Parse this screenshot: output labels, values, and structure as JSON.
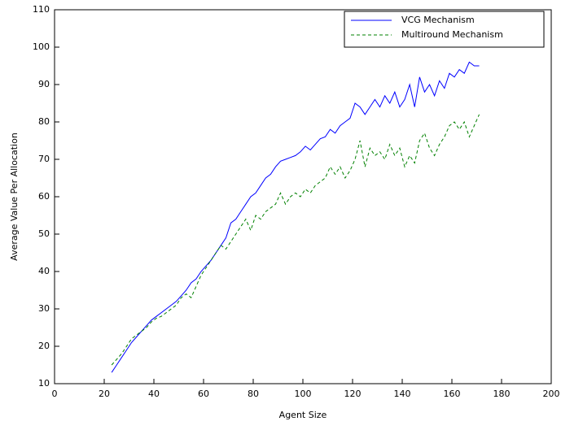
{
  "chart_data": {
    "type": "line",
    "xlabel": "Agent Size",
    "ylabel": "Average Value Per Allocation",
    "x": [
      23,
      25,
      27,
      29,
      31,
      33,
      35,
      37,
      39,
      41,
      43,
      45,
      47,
      49,
      51,
      53,
      55,
      57,
      59,
      61,
      63,
      65,
      67,
      69,
      71,
      73,
      75,
      77,
      79,
      81,
      83,
      85,
      87,
      89,
      91,
      93,
      95,
      97,
      99,
      101,
      103,
      105,
      107,
      109,
      111,
      113,
      115,
      117,
      119,
      121,
      123,
      125,
      127,
      129,
      131,
      133,
      135,
      137,
      139,
      141,
      143,
      145,
      147,
      149,
      151,
      153,
      155,
      157,
      159,
      161,
      163,
      165,
      167,
      169,
      171
    ],
    "series": [
      {
        "name": "VCG Mechanism",
        "color": "#0000ff",
        "dash": "solid",
        "values": [
          13,
          15,
          17,
          19,
          21,
          22.5,
          24,
          25.5,
          27,
          28,
          29,
          30,
          31,
          32,
          33.5,
          35,
          37,
          38,
          40,
          41.5,
          43,
          45,
          47,
          49,
          53,
          54,
          56,
          58,
          60,
          61,
          63,
          65,
          66,
          68,
          69.5,
          70,
          70.5,
          71,
          72,
          73.5,
          72.5,
          74,
          75.5,
          76,
          78,
          77,
          79,
          80,
          81,
          85,
          84,
          82,
          84,
          86,
          84,
          87,
          85,
          88,
          84,
          86,
          90,
          84,
          92,
          88,
          90,
          87,
          91,
          89,
          93,
          92,
          94,
          93,
          96,
          95,
          95
        ]
      },
      {
        "name": "Multiround Mechanism",
        "color": "#008000",
        "dash": "dashed",
        "values": [
          15,
          16.5,
          18,
          20,
          22,
          23,
          24,
          25,
          26.5,
          27.5,
          28,
          29,
          30,
          31,
          33,
          34,
          33,
          36,
          39,
          41,
          43,
          45,
          47,
          46,
          48,
          50,
          52,
          54,
          51,
          55,
          54,
          56,
          57,
          58,
          61,
          58,
          60,
          61,
          60,
          62,
          61,
          63,
          64,
          65,
          68,
          66,
          68,
          65,
          67,
          70,
          75,
          68,
          73,
          71,
          72,
          70,
          74,
          71,
          73,
          68,
          71,
          69,
          75,
          77,
          73,
          71,
          74,
          76,
          79,
          80,
          78,
          80,
          76,
          79,
          82
        ]
      }
    ],
    "xlim": [
      0,
      200
    ],
    "xticks": [
      0,
      20,
      40,
      60,
      80,
      100,
      120,
      140,
      160,
      180,
      200
    ],
    "ylim": [
      10,
      110
    ],
    "yticks": [
      10,
      20,
      30,
      40,
      50,
      60,
      70,
      80,
      90,
      100,
      110
    ],
    "legend": "upper right"
  }
}
